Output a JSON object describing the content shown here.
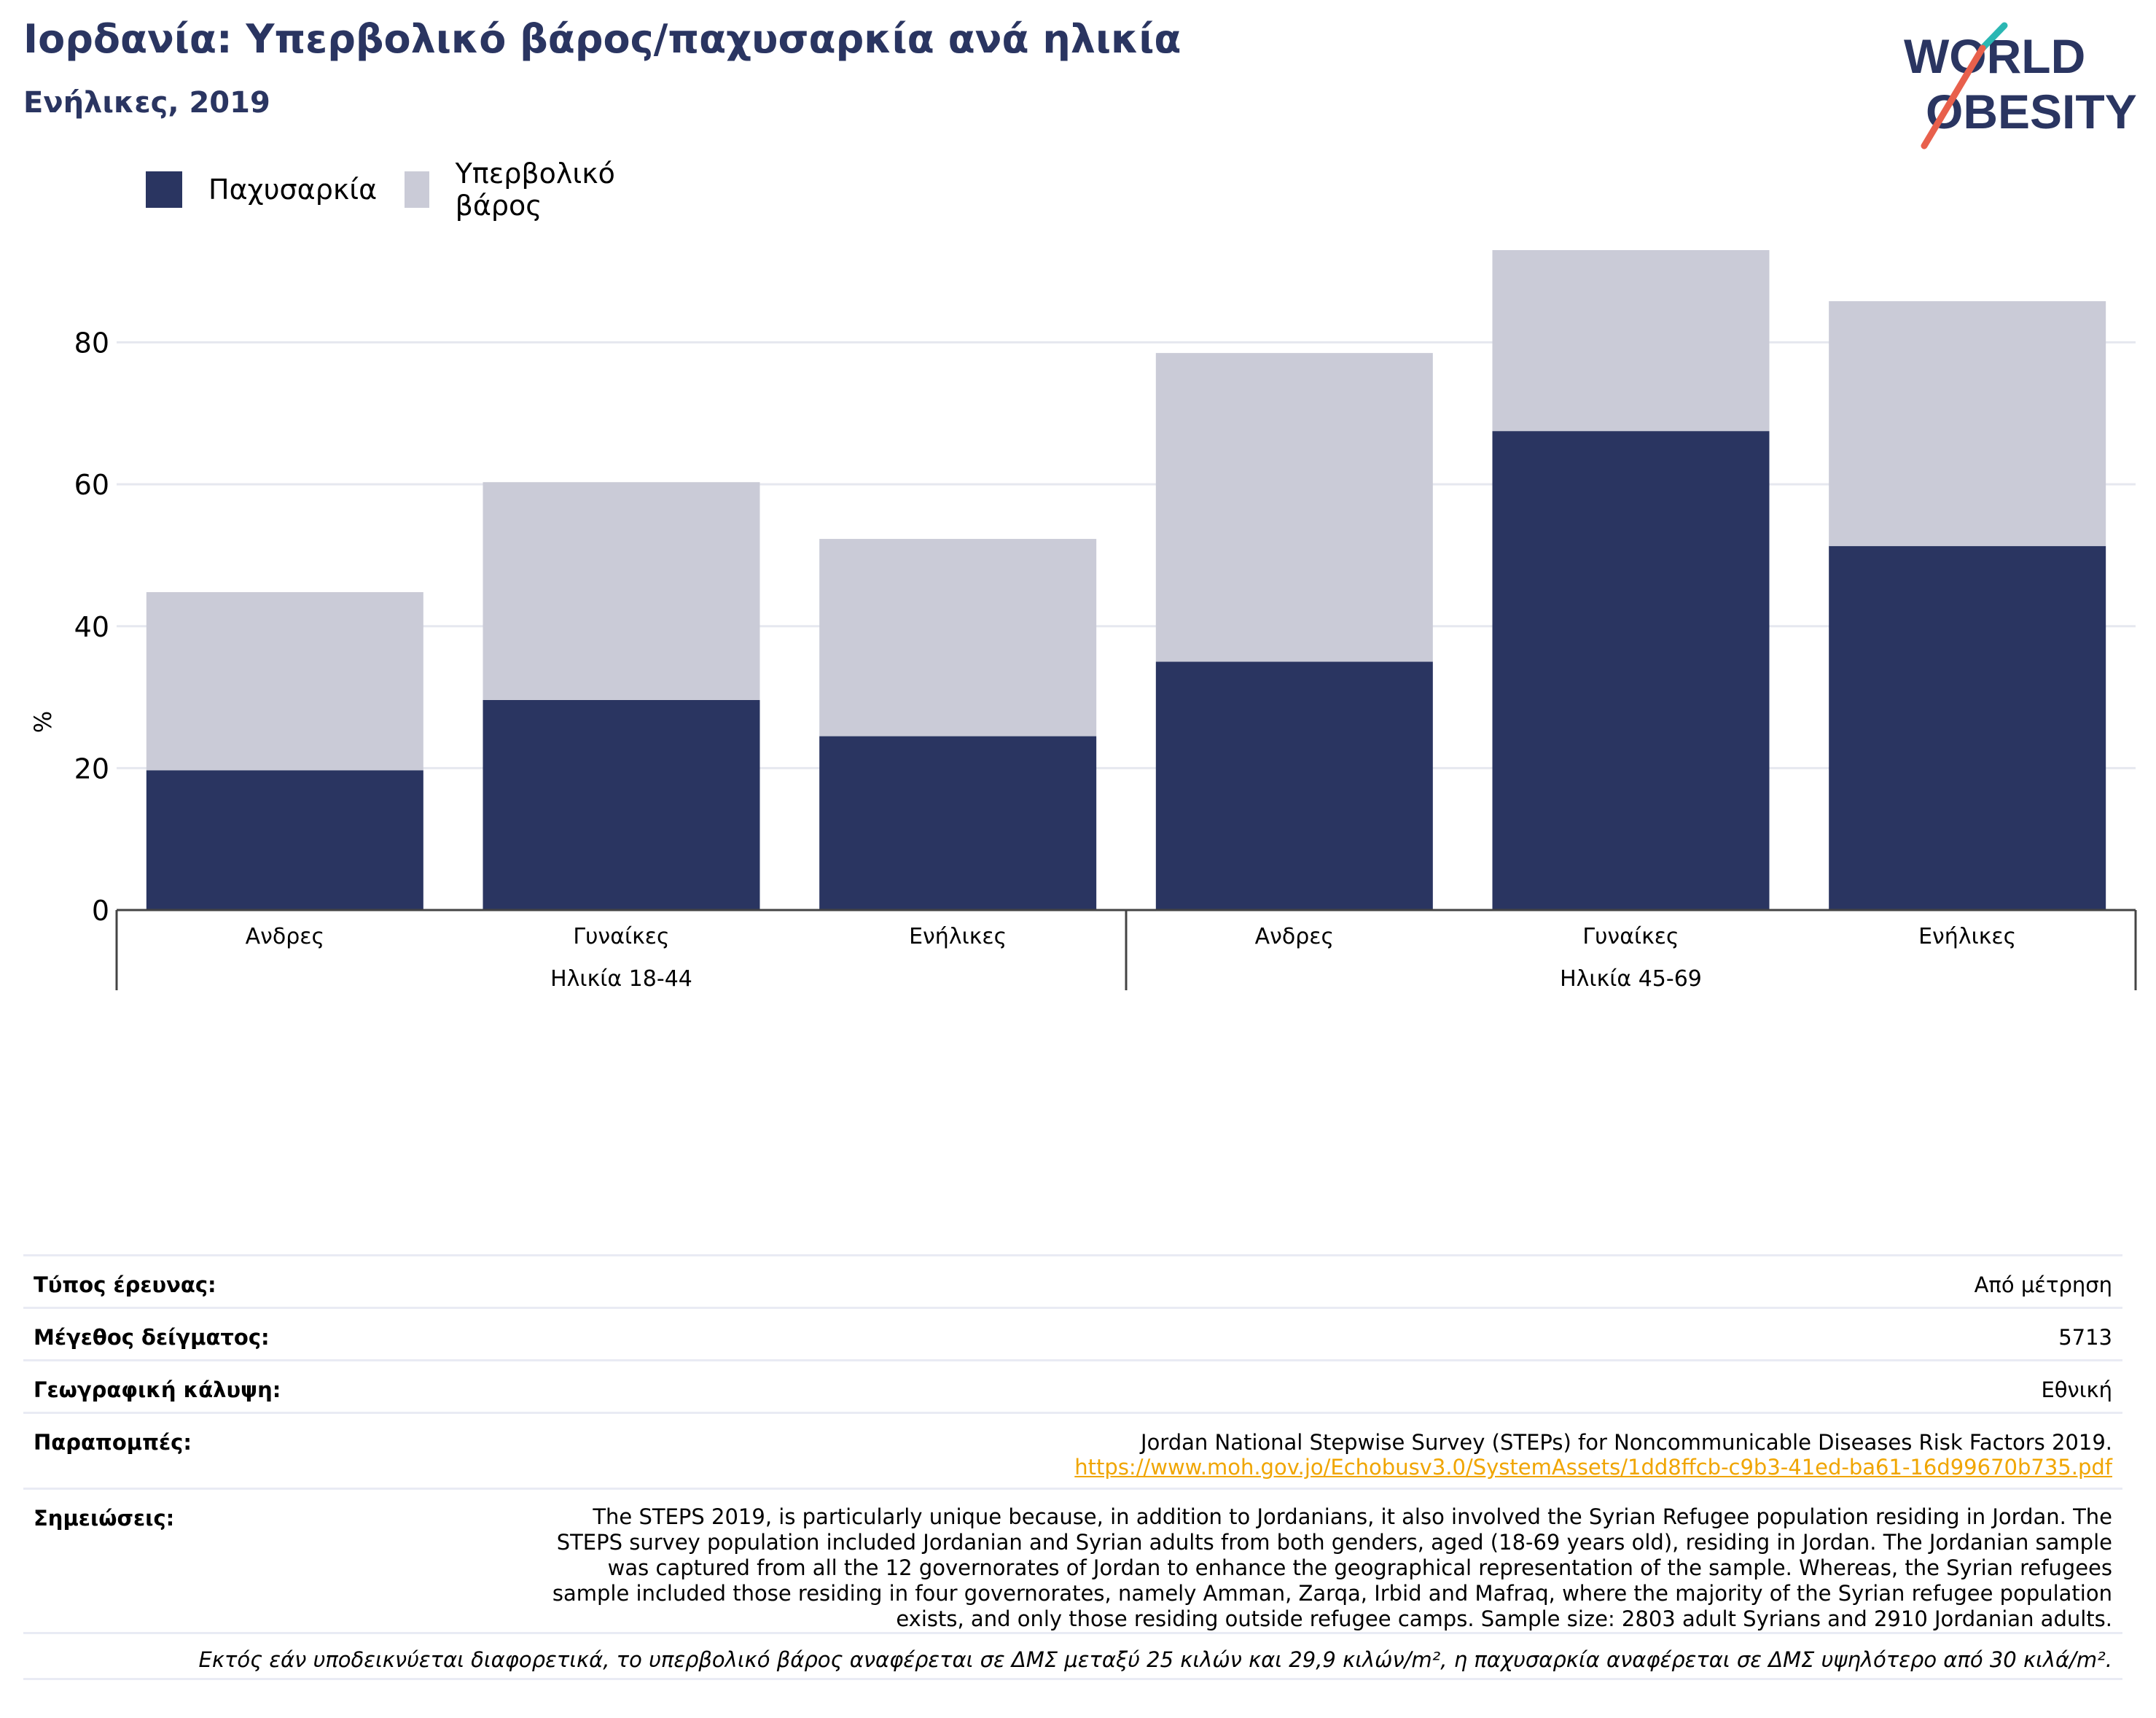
{
  "header": {
    "title": "Ιορδανία: Υπερβολικό βάρος/παχυσαρκία ανά ηλικία",
    "subtitle": "Ενήλικες, 2019"
  },
  "logo": {
    "line1": "WORLD",
    "line2": "OBESITY",
    "text_color": "#2a3561",
    "slash_colors": [
      "#2bb7b3",
      "#e8604c"
    ]
  },
  "legend": {
    "items": [
      {
        "label": "Παχυσαρκία",
        "color": "#2a3561"
      },
      {
        "label": "Υπερβολικό βάρος",
        "color": "#cacbd7"
      }
    ]
  },
  "chart_data": {
    "type": "bar",
    "stacked": true,
    "categories": [
      "Ανδρες",
      "Γυναίκες",
      "Ενήλικες",
      "Ανδρες",
      "Γυναίκες",
      "Ενήλικες"
    ],
    "groups": [
      {
        "label": "Ηλικία 18-44",
        "categories": [
          "Ανδρες",
          "Γυναίκες",
          "Ενήλικες"
        ]
      },
      {
        "label": "Ηλικία 45-69",
        "categories": [
          "Ανδρες",
          "Γυναίκες",
          "Ενήλικες"
        ]
      }
    ],
    "series": [
      {
        "name": "Παχυσαρκία",
        "color": "#2a3561",
        "values": [
          19.7,
          29.6,
          24.5,
          35.0,
          67.5,
          51.3
        ]
      },
      {
        "name": "Υπερβολικό βάρος",
        "color": "#cacbd7",
        "values": [
          25.1,
          30.7,
          27.8,
          43.5,
          25.5,
          34.5
        ]
      }
    ],
    "ylabel": "%",
    "ylim": [
      0,
      93
    ],
    "yticks": [
      0,
      20,
      40,
      60,
      80
    ],
    "grid": true,
    "legend_position": "top-left"
  },
  "meta": {
    "survey_type_label": "Τύπος έρευνας:",
    "survey_type_value": "Από μέτρηση",
    "sample_size_label": "Μέγεθος δείγματος:",
    "sample_size_value": "5713",
    "coverage_label": "Γεωγραφική κάλυψη:",
    "coverage_value": "Εθνική",
    "references_label": "Παραπομπές:",
    "references_text": "Jordan National Stepwise Survey (STEPs) for Noncommunicable Diseases Risk Factors 2019.",
    "references_link": "https://www.moh.gov.jo/Echobusv3.0/SystemAssets/1dd8ffcb-c9b3-41ed-ba61-16d99670b735.pdf",
    "notes_label": "Σημειώσεις:",
    "notes_text": "The STEPS 2019, is particularly unique because, in addition to Jordanians, it also involved the Syrian Refugee population residing in Jordan. The STEPS survey population included Jordanian and Syrian adults from both genders, aged (18-69 years old), residing in Jordan. The Jordanian sample was captured from all the 12 governorates of Jordan to enhance the geographical representation of the sample. Whereas, the Syrian refugees sample included those residing in four governorates, namely Amman, Zarqa, Irbid and Mafraq, where the majority of the Syrian refugee population exists, and only those residing outside refugee camps. Sample size: 2803 adult Syrians and 2910 Jordanian adults."
  },
  "footnote": "Εκτός εάν υποδεικνύεται διαφορετικά, το υπερβολικό βάρος αναφέρεται σε ΔΜΣ μεταξύ 25 κιλών και 29,9 κιλών/m², η παχυσαρκία αναφέρεται σε ΔΜΣ υψηλότερο από 30 κιλά/m²."
}
